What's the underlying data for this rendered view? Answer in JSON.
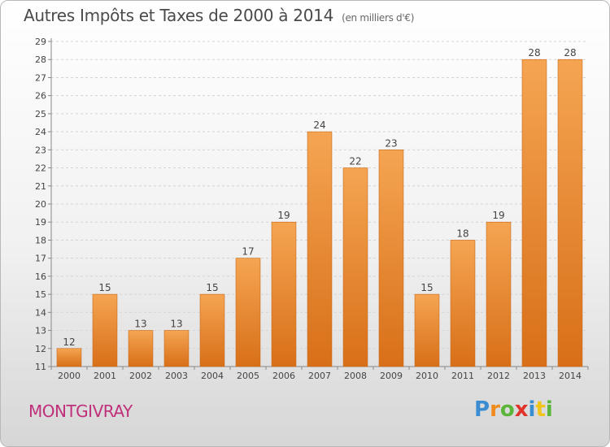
{
  "header": {
    "title": "Autres Impôts et Taxes de 2000 à 2014",
    "unit": "(en milliers d'€)"
  },
  "commune": "MONTGIVRAY",
  "logo": {
    "letters": [
      "P",
      "r",
      "o",
      "x",
      "i",
      "t",
      "i"
    ],
    "colors": [
      "#3a8dd0",
      "#f08a1c",
      "#5bb53a",
      "#e0332a",
      "#3a8dd0",
      "#f0c419",
      "#5bb53a"
    ]
  },
  "colors": {
    "bar_light": "#f5a552",
    "bar_dark": "#d86f18",
    "grid": "#d4d4d4"
  },
  "chart_data": {
    "type": "bar",
    "categories": [
      "2000",
      "2001",
      "2002",
      "2003",
      "2004",
      "2005",
      "2006",
      "2007",
      "2008",
      "2009",
      "2010",
      "2011",
      "2012",
      "2013",
      "2014"
    ],
    "values": [
      12,
      15,
      13,
      13,
      15,
      17,
      19,
      24,
      22,
      23,
      15,
      18,
      19,
      28,
      28
    ],
    "title": "Autres Impôts et Taxes de 2000 à 2014",
    "xlabel": "",
    "ylabel": "",
    "ylim": [
      11,
      29
    ],
    "yticks": [
      11,
      12,
      13,
      14,
      15,
      16,
      17,
      18,
      19,
      20,
      21,
      22,
      23,
      24,
      25,
      26,
      27,
      28,
      29
    ],
    "grid": true
  }
}
